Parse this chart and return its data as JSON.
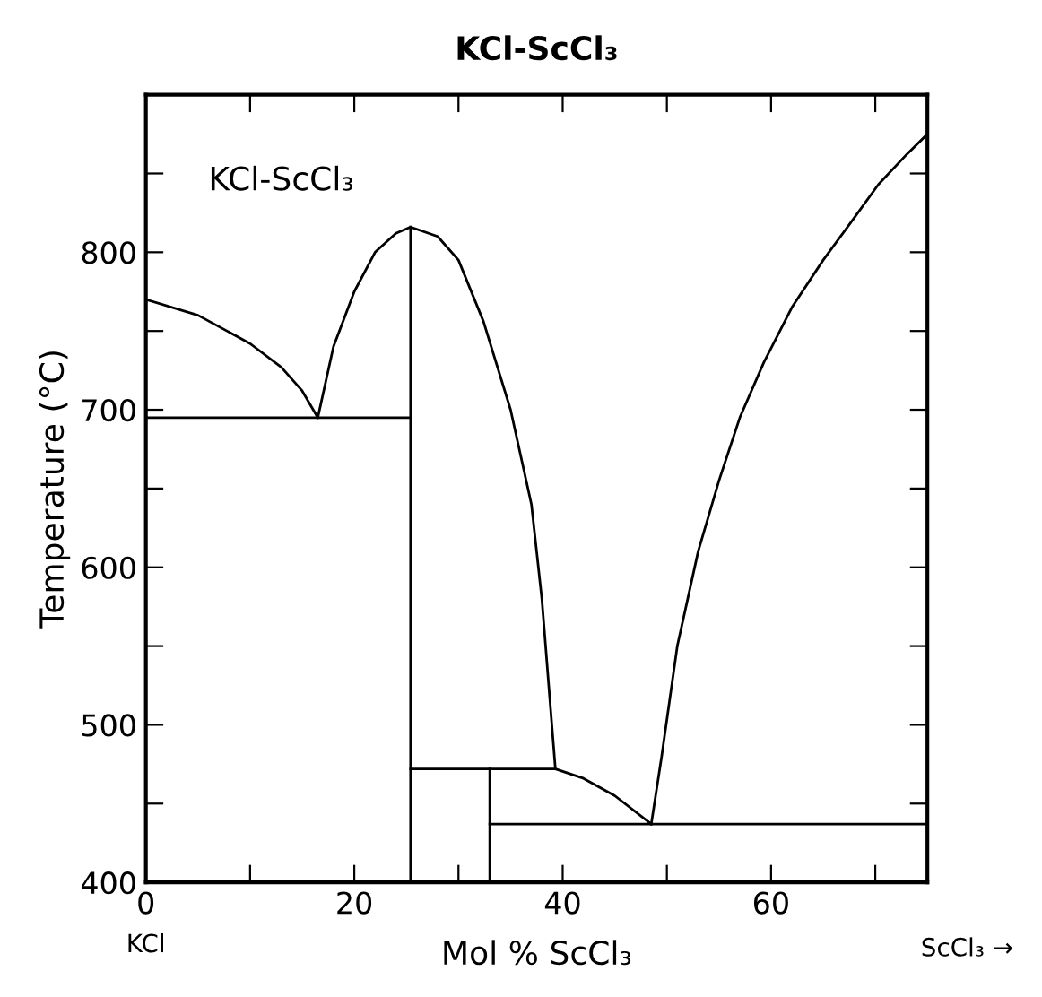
{
  "chart_data": {
    "type": "line",
    "title": "KCl-ScCl₃",
    "xlabel": "Mol % ScCl₃",
    "ylabel": "Temperature (°C)",
    "annotations": [
      "KCl-ScCl₃",
      "KCl",
      "ScCl₃ →"
    ],
    "xlim": [
      0,
      75
    ],
    "ylim": [
      400,
      900
    ],
    "xticks": [
      0,
      {
        "value": 10,
        "label": null
      },
      20,
      {
        "value": 30,
        "label": null
      },
      40,
      {
        "value": 50,
        "label": null
      },
      60,
      {
        "value": 70,
        "label": null
      }
    ],
    "yticks": [
      400,
      {
        "value": 450,
        "label": null
      },
      500,
      {
        "value": 550,
        "label": null
      },
      600,
      {
        "value": 650,
        "label": null
      },
      700,
      {
        "value": 750,
        "label": null
      },
      800,
      {
        "value": 850,
        "label": null
      }
    ],
    "grid": false,
    "legend": false,
    "marker": "none",
    "line_style": "solid",
    "series": [
      {
        "color": "#000000",
        "x": [
          0,
          5,
          10,
          13,
          15,
          16.5
        ],
        "values": [
          770,
          760,
          742,
          727,
          712,
          695
        ]
      },
      {
        "color": "#000000",
        "x": [
          16.5,
          18,
          20,
          22,
          24,
          25.4,
          28,
          30,
          32.4,
          35,
          37,
          38,
          39.3
        ],
        "values": [
          695,
          740,
          775,
          800,
          812,
          816,
          810,
          795,
          756,
          700,
          640,
          580,
          472
        ]
      },
      {
        "color": "#000000",
        "x": [
          25.4,
          39.3,
          42,
          45,
          48.5
        ],
        "values": [
          472,
          472,
          466,
          455,
          437
        ]
      },
      {
        "color": "#000000",
        "x": [
          48.5,
          49.5,
          51,
          53,
          55,
          57,
          59.3,
          62,
          65,
          68,
          70.3,
          73,
          75
        ],
        "values": [
          437,
          480,
          550,
          610,
          655,
          695,
          730,
          765,
          795,
          822,
          843,
          862,
          875
        ]
      },
      {
        "color": "#000000",
        "x": [
          25.4,
          25.4
        ],
        "values": [
          400,
          816
        ]
      },
      {
        "color": "#000000",
        "x": [
          0,
          25.4
        ],
        "values": [
          695,
          695
        ]
      },
      {
        "color": "#000000",
        "x": [
          33,
          33
        ],
        "values": [
          400,
          472
        ]
      },
      {
        "color": "#000000",
        "x": [
          33,
          75
        ],
        "values": [
          437,
          437
        ]
      }
    ]
  }
}
